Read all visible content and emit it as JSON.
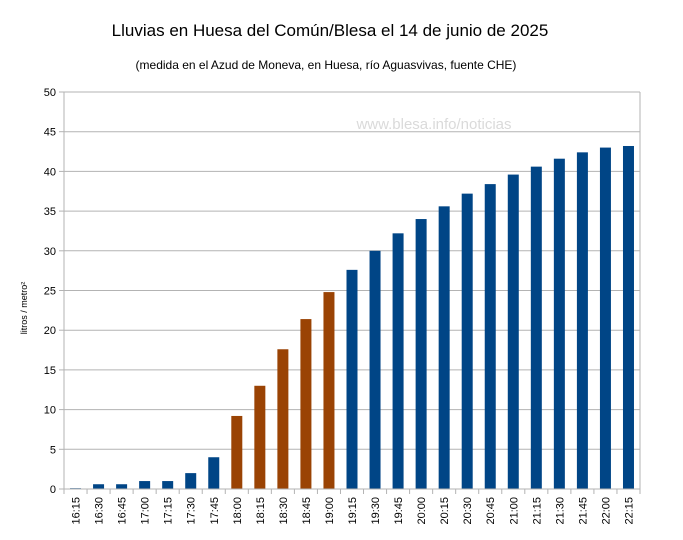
{
  "chart_data": {
    "type": "bar",
    "title": "Lluvias en Huesa del Común/Blesa el 14 de junio de 2025",
    "subtitle": "(medida en el Azud de Moneva, en Huesa, río Aguasvivas, fuente CHE)",
    "watermark": "www.blesa.info/noticias",
    "xlabel": "",
    "ylabel": "litros / metro²",
    "ylim": [
      0,
      50
    ],
    "yticks": [
      0,
      5,
      10,
      15,
      20,
      25,
      30,
      35,
      40,
      45,
      50
    ],
    "grid": true,
    "categories": [
      "16:15",
      "16:30",
      "16:45",
      "17:00",
      "17:15",
      "17:30",
      "17:45",
      "18:00",
      "18:15",
      "18:30",
      "18:45",
      "19:00",
      "19:15",
      "19:30",
      "19:45",
      "20:00",
      "20:15",
      "20:30",
      "20:45",
      "21:00",
      "21:15",
      "21:30",
      "21:45",
      "22:00",
      "22:15"
    ],
    "values": [
      0.1,
      0.6,
      0.6,
      1.0,
      1.0,
      2.0,
      4.0,
      9.2,
      13.0,
      17.6,
      21.4,
      24.8,
      27.6,
      30.0,
      32.2,
      34.0,
      35.6,
      37.2,
      38.4,
      39.6,
      40.6,
      41.6,
      42.4,
      43.0,
      43.2
    ],
    "bar_colors": [
      "#004586",
      "#004586",
      "#004586",
      "#004586",
      "#004586",
      "#004586",
      "#004586",
      "#9a4304",
      "#9a4304",
      "#9a4304",
      "#9a4304",
      "#9a4304",
      "#004586",
      "#004586",
      "#004586",
      "#004586",
      "#004586",
      "#004586",
      "#004586",
      "#004586",
      "#004586",
      "#004586",
      "#004586",
      "#004586",
      "#004586"
    ]
  }
}
